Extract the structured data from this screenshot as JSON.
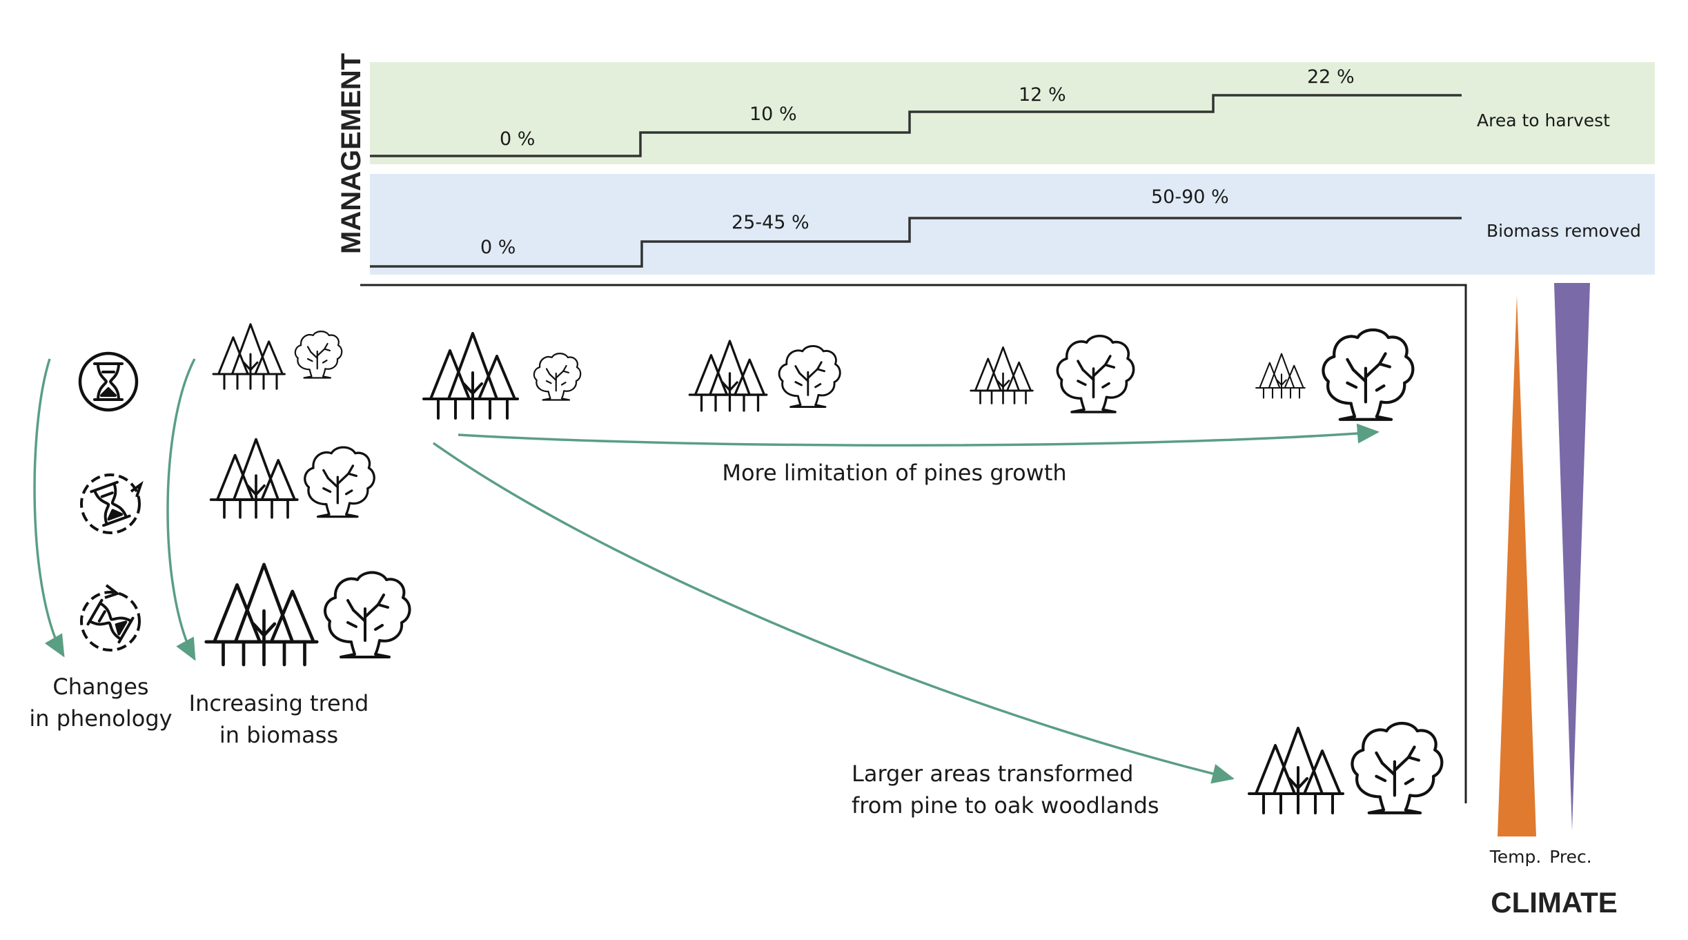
{
  "management": {
    "title": "MANAGEMENT",
    "harvest": {
      "label": "Area to harvest",
      "steps": [
        "0 %",
        "10 %",
        "12 %",
        "22 %"
      ],
      "band_color": "#e3efda"
    },
    "biomass": {
      "label": "Biomass removed",
      "steps": [
        "0 %",
        "25-45 %",
        "50-90 %"
      ],
      "band_color": "#dfeaf6"
    }
  },
  "left": {
    "phenology_line1": "Changes",
    "phenology_line2": "in phenology",
    "biomass_line1": "Increasing trend",
    "biomass_line2": "in biomass"
  },
  "arrows": {
    "pines": "More limitation of pines growth",
    "transform_line1": "Larger areas transformed",
    "transform_line2": "from pine to oak woodlands"
  },
  "climate": {
    "title": "CLIMATE",
    "temp": "Temp.",
    "prec": "Prec.",
    "temp_color": "#e07a2e",
    "prec_color": "#7a6aa8"
  },
  "colors": {
    "arrow": "#5a9e84",
    "ink": "#111111"
  },
  "icons": [
    "hourglass-icon",
    "hourglass-cycle-icon",
    "hourglass-rotated-icon",
    "pine-trees-icon",
    "oak-tree-icon"
  ]
}
